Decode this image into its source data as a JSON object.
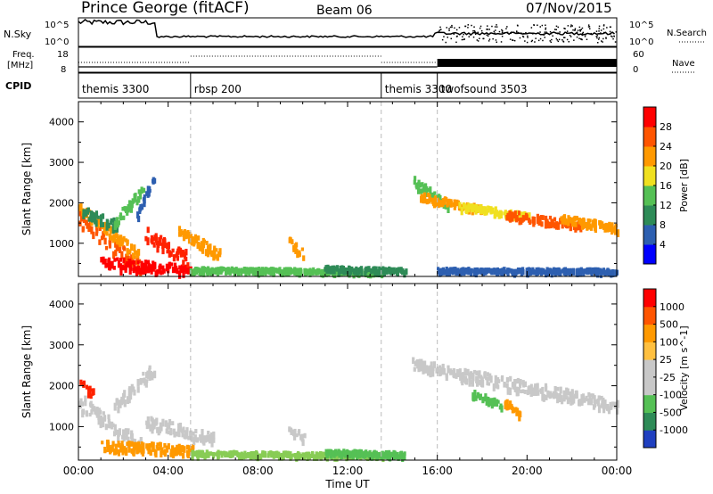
{
  "header": {
    "title": "Prince George (fitACF)",
    "beam": "Beam 06",
    "date": "07/Nov/2015"
  },
  "strip": {
    "left_labels": {
      "nsky": "N.Sky",
      "freq_line1": "Freq.",
      "freq_line2": "[MHz]",
      "cpid": "CPID"
    },
    "nsky_ticks": [
      "10^5",
      "10^0"
    ],
    "nsearch_ticks": [
      "10^5",
      "10^0"
    ],
    "freq_ticks": [
      "18",
      "8"
    ],
    "nave_ticks": [
      "60",
      "0"
    ],
    "right_labels": {
      "nsearch": "N.Search",
      "nave": "Nave"
    },
    "cpid_segments": [
      {
        "label": "themis 3300",
        "start_hour": 0
      },
      {
        "label": "rbsp 200",
        "start_hour": 5
      },
      {
        "label": "themis 3300",
        "start_hour": 13.5
      },
      {
        "label": "twofsound 3503",
        "start_hour": 16
      }
    ]
  },
  "chart_data": [
    {
      "type": "heatmap",
      "name_panel": "power",
      "ylabel": "Slant Range [km]",
      "yticks": [
        "4000",
        "3000",
        "2000",
        "1000"
      ],
      "ylim": [
        180,
        4500
      ],
      "xlim_hours": [
        0,
        24
      ],
      "colorbar_label": "Power [dB]",
      "colorbar_ticks": [
        "28",
        "24",
        "20",
        "16",
        "12",
        "8",
        "4"
      ],
      "colorbar_colors": [
        "#0000ff",
        "#2d5fb0",
        "#2e8b57",
        "#55c055",
        "#f0e020",
        "#ff9900",
        "#ff5500",
        "#ff0000"
      ],
      "bands": [
        {
          "t0": 0.0,
          "t1": 2.7,
          "r0": 1600,
          "r1": 400,
          "w": 380,
          "color": "#ff5500"
        },
        {
          "t0": 0.0,
          "t1": 2.6,
          "r0": 1900,
          "r1": 700,
          "w": 220,
          "color": "#ff9900"
        },
        {
          "t0": 0.2,
          "t1": 1.6,
          "r0": 1750,
          "r1": 1450,
          "w": 250,
          "color": "#2e8b57"
        },
        {
          "t0": 1.6,
          "t1": 2.8,
          "r0": 1500,
          "r1": 2300,
          "w": 260,
          "color": "#55c055"
        },
        {
          "t0": 2.6,
          "t1": 3.3,
          "r0": 1700,
          "r1": 2600,
          "w": 200,
          "color": "#2d5fb0"
        },
        {
          "t0": 1.0,
          "t1": 5.0,
          "r0": 500,
          "r1": 300,
          "w": 260,
          "color": "#ff0000"
        },
        {
          "t0": 3.0,
          "t1": 4.8,
          "r0": 1200,
          "r1": 600,
          "w": 350,
          "color": "#ff2200"
        },
        {
          "t0": 4.5,
          "t1": 6.2,
          "r0": 1300,
          "r1": 700,
          "w": 250,
          "color": "#ff9900"
        },
        {
          "t0": 5.0,
          "t1": 13.5,
          "r0": 330,
          "r1": 280,
          "w": 90,
          "color": "#55c055"
        },
        {
          "t0": 9.4,
          "t1": 10.0,
          "r0": 1000,
          "r1": 700,
          "w": 200,
          "color": "#ff9900"
        },
        {
          "t0": 11.0,
          "t1": 14.5,
          "r0": 360,
          "r1": 300,
          "w": 100,
          "color": "#2e8b57"
        },
        {
          "t0": 14.9,
          "t1": 16.5,
          "r0": 2500,
          "r1": 1900,
          "w": 220,
          "color": "#55c055"
        },
        {
          "t0": 15.2,
          "t1": 18.0,
          "r0": 2150,
          "r1": 1800,
          "w": 180,
          "color": "#ff9900"
        },
        {
          "t0": 17.0,
          "t1": 20.0,
          "r0": 1900,
          "r1": 1650,
          "w": 150,
          "color": "#f0e020"
        },
        {
          "t0": 19.0,
          "t1": 22.5,
          "r0": 1700,
          "r1": 1400,
          "w": 180,
          "color": "#ff5500"
        },
        {
          "t0": 21.5,
          "t1": 24.0,
          "r0": 1600,
          "r1": 1350,
          "w": 180,
          "color": "#ff9900"
        },
        {
          "t0": 16.0,
          "t1": 24.0,
          "r0": 320,
          "r1": 300,
          "w": 80,
          "color": "#2d5fb0"
        }
      ]
    },
    {
      "type": "heatmap",
      "name_panel": "velocity",
      "ylabel": "Slant Range [km]",
      "yticks": [
        "4000",
        "3000",
        "2000",
        "1000"
      ],
      "ylim": [
        180,
        4500
      ],
      "xlim_hours": [
        0,
        24
      ],
      "xticks": [
        "00:00",
        "04:00",
        "08:00",
        "12:00",
        "16:00",
        "20:00",
        "00:00"
      ],
      "xlabel": "Time UT",
      "colorbar_label": "Velocity [m s^-1]",
      "colorbar_ticks": [
        "1000",
        "500",
        "100",
        "25",
        "-25",
        "-100",
        "-500",
        "-1000"
      ],
      "colorbar_colors": [
        "#2040c0",
        "#2e8b57",
        "#55c055",
        "#c8c8c8",
        "#c8c8c8",
        "#ffc040",
        "#ff9900",
        "#ff5500",
        "#ff0000"
      ],
      "bands": [
        {
          "t0": 0.0,
          "t1": 2.7,
          "r0": 1600,
          "r1": 500,
          "w": 380,
          "color": "#c8c8c8"
        },
        {
          "t0": 0.0,
          "t1": 0.6,
          "r0": 2000,
          "r1": 1800,
          "w": 300,
          "color": "#ff2200"
        },
        {
          "t0": 1.6,
          "t1": 3.3,
          "r0": 1500,
          "r1": 2400,
          "w": 260,
          "color": "#c8c8c8"
        },
        {
          "t0": 1.0,
          "t1": 5.0,
          "r0": 500,
          "r1": 400,
          "w": 260,
          "color": "#ff9900"
        },
        {
          "t0": 3.0,
          "t1": 6.0,
          "r0": 1100,
          "r1": 700,
          "w": 300,
          "color": "#c8c8c8"
        },
        {
          "t0": 5.0,
          "t1": 13.5,
          "r0": 330,
          "r1": 280,
          "w": 90,
          "color": "#88cc55"
        },
        {
          "t0": 9.4,
          "t1": 10.0,
          "r0": 900,
          "r1": 700,
          "w": 200,
          "color": "#c8c8c8"
        },
        {
          "t0": 11.0,
          "t1": 14.5,
          "r0": 360,
          "r1": 300,
          "w": 100,
          "color": "#55c055"
        },
        {
          "t0": 14.9,
          "t1": 24.0,
          "r0": 2500,
          "r1": 1500,
          "w": 280,
          "color": "#c8c8c8"
        },
        {
          "t0": 17.5,
          "t1": 18.8,
          "r0": 1800,
          "r1": 1500,
          "w": 160,
          "color": "#55c055"
        },
        {
          "t0": 19.0,
          "t1": 19.6,
          "r0": 1600,
          "r1": 1300,
          "w": 120,
          "color": "#ff9900"
        }
      ]
    }
  ]
}
